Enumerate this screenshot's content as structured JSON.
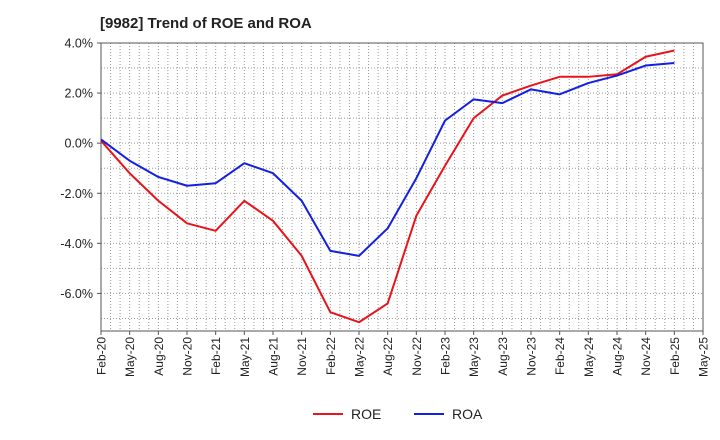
{
  "chart_data": {
    "type": "line",
    "title": "[9982]  Trend of ROE and ROA",
    "xlabel": "",
    "ylabel": "",
    "x": [
      "Feb-20",
      "May-20",
      "Aug-20",
      "Nov-20",
      "Feb-21",
      "May-21",
      "Aug-21",
      "Nov-21",
      "Feb-22",
      "May-22",
      "Aug-22",
      "Nov-22",
      "Feb-23",
      "May-23",
      "Aug-23",
      "Nov-23",
      "Feb-24",
      "May-24",
      "Aug-24",
      "Nov-24",
      "Feb-25"
    ],
    "x_tick_labels": [
      "Feb-20",
      "May-20",
      "Aug-20",
      "Nov-20",
      "Feb-21",
      "May-21",
      "Aug-21",
      "Nov-21",
      "Feb-22",
      "May-22",
      "Aug-22",
      "Nov-22",
      "Feb-23",
      "May-23",
      "Aug-23",
      "Nov-23",
      "Feb-24",
      "May-24",
      "Aug-24",
      "Nov-24",
      "Feb-25",
      "May-25"
    ],
    "y_tick_labels": [
      "4.0%",
      "2.0%",
      "0.0%",
      "-2.0%",
      "-4.0%",
      "-6.0%"
    ],
    "ylim": [
      -7.5,
      4.0
    ],
    "series": [
      {
        "name": "ROE",
        "color": "#e8141b",
        "values": [
          0.1,
          -1.2,
          -2.3,
          -3.2,
          -3.5,
          -2.3,
          -3.1,
          -4.5,
          -6.75,
          -7.15,
          -6.4,
          -2.9,
          -0.9,
          1.0,
          1.9,
          2.3,
          2.65,
          2.65,
          2.75,
          3.45,
          3.7
        ]
      },
      {
        "name": "ROA",
        "color": "#1420e0",
        "values": [
          0.15,
          -0.7,
          -1.35,
          -1.7,
          -1.6,
          -0.8,
          -1.2,
          -2.3,
          -4.3,
          -4.5,
          -3.4,
          -1.4,
          0.9,
          1.75,
          1.6,
          2.15,
          1.95,
          2.4,
          2.7,
          3.1,
          3.2
        ]
      }
    ],
    "grid": true,
    "legend_position": "bottom-center"
  }
}
